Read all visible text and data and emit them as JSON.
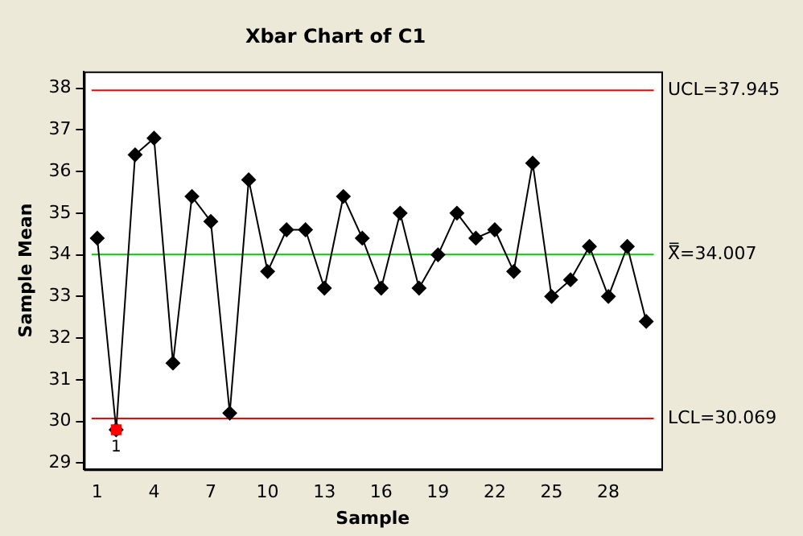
{
  "chart_data": {
    "type": "line",
    "title": "Xbar Chart of C1",
    "xlabel": "Sample",
    "ylabel": "Sample Mean",
    "x": [
      1,
      2,
      3,
      4,
      5,
      6,
      7,
      8,
      9,
      10,
      11,
      12,
      13,
      14,
      15,
      16,
      17,
      18,
      19,
      20,
      21,
      22,
      23,
      24,
      25,
      26,
      27,
      28,
      29,
      30
    ],
    "series": [
      {
        "color": "#000000",
        "marker": "diamond",
        "values": [
          34.4,
          29.8,
          36.4,
          36.8,
          31.4,
          35.4,
          34.8,
          30.2,
          35.8,
          33.6,
          34.6,
          34.6,
          33.2,
          35.4,
          34.4,
          33.2,
          35.0,
          33.2,
          34.0,
          35.0,
          34.4,
          34.6,
          33.6,
          36.2,
          33.0,
          33.4,
          34.2,
          33.0,
          34.2,
          32.4
        ]
      },
      {
        "type": "scatter",
        "color": "#ff0000",
        "marker": "square",
        "x": [
          2
        ],
        "values": [
          29.8
        ]
      }
    ],
    "xlim": [
      0.3,
      30.8
    ],
    "xticks": [
      1,
      4,
      7,
      10,
      13,
      16,
      19,
      22,
      25,
      28
    ],
    "ylim": [
      28.85,
      38.4
    ],
    "yticks": [
      29,
      30,
      31,
      32,
      33,
      34,
      35,
      36,
      37,
      38
    ],
    "ref_lines": [
      {
        "axis": "y",
        "value": 37.945,
        "label": "UCL=37.945",
        "color": "#ff0000"
      },
      {
        "axis": "y",
        "value": 34.007,
        "label": "X̿=34.007",
        "color": "#00cc00"
      },
      {
        "axis": "y",
        "value": 30.069,
        "label": "LCL=30.069",
        "color": "#ff0000"
      }
    ],
    "annotations": [
      {
        "text": "1",
        "x": 2,
        "y": 29.8
      }
    ],
    "grid": false,
    "legend": false
  }
}
